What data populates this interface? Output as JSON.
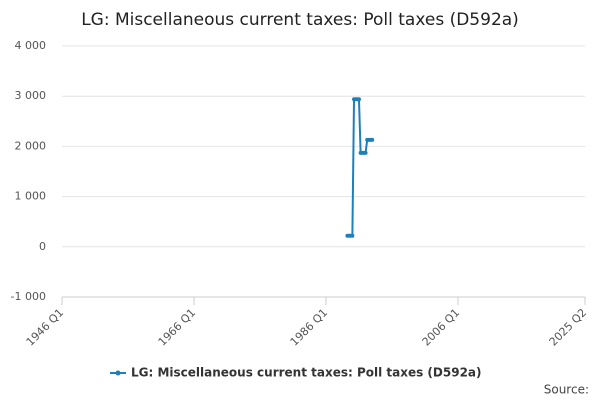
{
  "chart_data": {
    "type": "line",
    "title": "LG: Miscellaneous current taxes: Poll taxes (D592a)",
    "x": [
      "1989 Q2",
      "1989 Q3",
      "1989 Q4",
      "1990 Q1",
      "1990 Q2",
      "1990 Q3",
      "1990 Q4",
      "1991 Q1",
      "1991 Q2",
      "1991 Q3",
      "1991 Q4",
      "1992 Q1",
      "1992 Q2",
      "1992 Q3",
      "1992 Q4",
      "1993 Q1"
    ],
    "series": [
      {
        "name": "LG: Miscellaneous current taxes: Poll taxes (D592a)",
        "color": "#1f7fb8",
        "values": [
          220,
          220,
          220,
          220,
          2940,
          2940,
          2940,
          2940,
          1870,
          1870,
          1870,
          1870,
          2130,
          2130,
          2130,
          2130
        ]
      }
    ],
    "xlim": [
      "1946 Q1",
      "2025 Q2"
    ],
    "xticks": [
      "1946 Q1",
      "1966 Q1",
      "1986 Q1",
      "2006 Q1",
      "2025 Q2"
    ],
    "ylim": [
      -1000,
      4000
    ],
    "yticks": [
      {
        "value": -1000,
        "label": "-1 000"
      },
      0,
      {
        "value": 1000,
        "label": "1 000"
      },
      {
        "value": 2000,
        "label": "2 000"
      },
      {
        "value": 3000,
        "label": "3 000"
      },
      {
        "value": 4000,
        "label": "4 000"
      }
    ],
    "grid": true,
    "source": "Source:"
  }
}
